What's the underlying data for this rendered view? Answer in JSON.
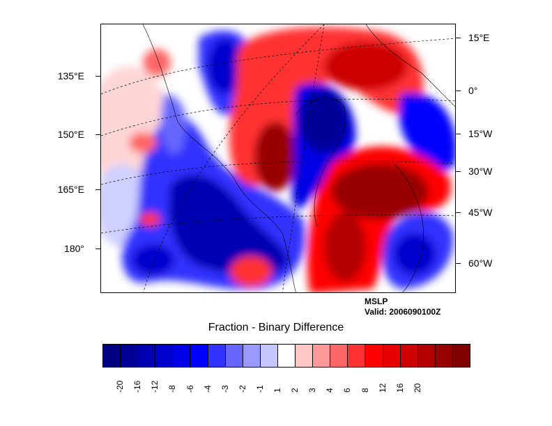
{
  "map": {
    "field": "MSLP",
    "valid": "Valid: 2006090100Z",
    "left_labels": [
      "135°E",
      "150°E",
      "165°E",
      "180°"
    ],
    "right_labels": [
      "15°E",
      "0°",
      "15°W",
      "30°W",
      "45°W",
      "60°W"
    ]
  },
  "colorbar": {
    "title": "Fraction - Binary Difference",
    "levels": [
      "-20",
      "-16",
      "-12",
      "-8",
      "-6",
      "-4",
      "-3",
      "-2",
      "-1",
      "1",
      "2",
      "3",
      "4",
      "6",
      "8",
      "12",
      "16",
      "20"
    ],
    "colors": [
      "#000080",
      "#000099",
      "#0000b3",
      "#0000cc",
      "#0000e6",
      "#0000ff",
      "#3333ff",
      "#6666ff",
      "#9999ff",
      "#c6c6ff",
      "#ffffff",
      "#ffc6c6",
      "#ff9999",
      "#ff6666",
      "#ff3333",
      "#ff0000",
      "#e60000",
      "#cc0000",
      "#b30000",
      "#990000",
      "#800000"
    ]
  }
}
